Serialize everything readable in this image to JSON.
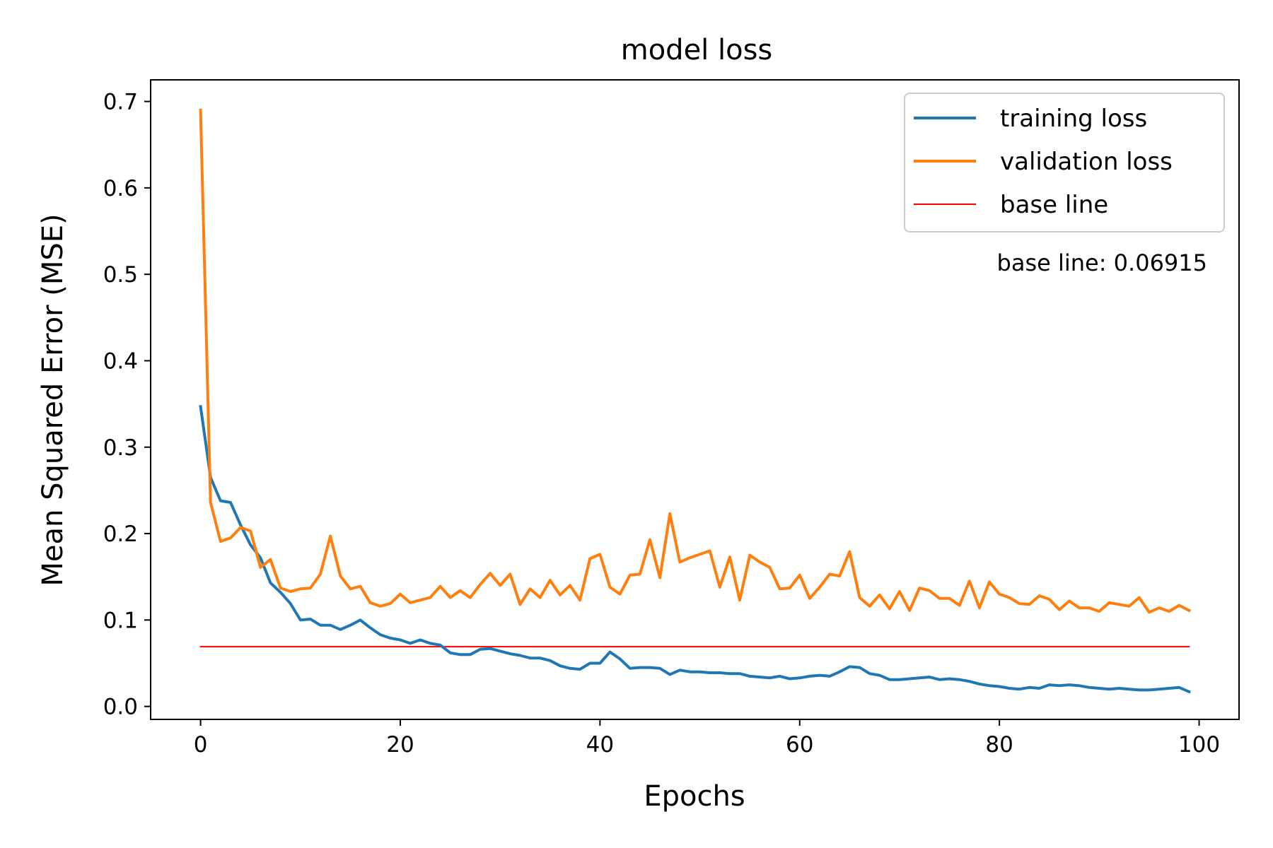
{
  "chart_data": {
    "type": "line",
    "title": "model loss",
    "xlabel": "Epochs",
    "ylabel": "Mean Squared Error (MSE)",
    "xlim": [
      -5,
      104
    ],
    "ylim": [
      -0.015,
      0.725
    ],
    "xticks": [
      0,
      20,
      40,
      60,
      80,
      100
    ],
    "yticks": [
      0.0,
      0.1,
      0.2,
      0.3,
      0.4,
      0.5,
      0.6,
      0.7
    ],
    "xtick_labels": [
      "0",
      "20",
      "40",
      "60",
      "80",
      "100"
    ],
    "ytick_labels": [
      "0.0",
      "0.1",
      "0.2",
      "0.3",
      "0.4",
      "0.5",
      "0.6",
      "0.7"
    ],
    "grid": false,
    "legend_position": "upper right",
    "annotation": "base line: 0.06915",
    "series": [
      {
        "name": "training loss",
        "color": "#1f77b4",
        "x_start": 0,
        "values": [
          0.347,
          0.265,
          0.238,
          0.236,
          0.21,
          0.187,
          0.172,
          0.143,
          0.132,
          0.119,
          0.1,
          0.101,
          0.094,
          0.094,
          0.089,
          0.094,
          0.1,
          0.091,
          0.083,
          0.079,
          0.077,
          0.073,
          0.077,
          0.073,
          0.071,
          0.062,
          0.06,
          0.06,
          0.066,
          0.067,
          0.064,
          0.061,
          0.059,
          0.056,
          0.056,
          0.053,
          0.047,
          0.044,
          0.043,
          0.05,
          0.05,
          0.063,
          0.055,
          0.044,
          0.045,
          0.045,
          0.044,
          0.037,
          0.042,
          0.04,
          0.04,
          0.039,
          0.039,
          0.038,
          0.038,
          0.035,
          0.034,
          0.033,
          0.035,
          0.032,
          0.033,
          0.035,
          0.036,
          0.035,
          0.04,
          0.046,
          0.045,
          0.038,
          0.036,
          0.031,
          0.031,
          0.032,
          0.033,
          0.034,
          0.031,
          0.032,
          0.031,
          0.029,
          0.026,
          0.024,
          0.023,
          0.021,
          0.02,
          0.022,
          0.021,
          0.025,
          0.024,
          0.025,
          0.024,
          0.022,
          0.021,
          0.02,
          0.021,
          0.02,
          0.019,
          0.019,
          0.02,
          0.021,
          0.022,
          0.017
        ]
      },
      {
        "name": "validation loss",
        "color": "#ff7f0e",
        "x_start": 0,
        "values": [
          0.69,
          0.236,
          0.191,
          0.195,
          0.207,
          0.203,
          0.161,
          0.17,
          0.137,
          0.133,
          0.136,
          0.137,
          0.153,
          0.197,
          0.151,
          0.136,
          0.139,
          0.12,
          0.116,
          0.119,
          0.13,
          0.12,
          0.123,
          0.126,
          0.139,
          0.126,
          0.134,
          0.126,
          0.141,
          0.154,
          0.14,
          0.153,
          0.118,
          0.136,
          0.126,
          0.146,
          0.129,
          0.14,
          0.123,
          0.171,
          0.176,
          0.138,
          0.13,
          0.152,
          0.153,
          0.193,
          0.149,
          0.223,
          0.167,
          0.172,
          0.176,
          0.18,
          0.138,
          0.173,
          0.123,
          0.175,
          0.167,
          0.161,
          0.136,
          0.137,
          0.152,
          0.125,
          0.138,
          0.153,
          0.151,
          0.179,
          0.126,
          0.116,
          0.129,
          0.113,
          0.133,
          0.111,
          0.137,
          0.134,
          0.125,
          0.125,
          0.117,
          0.145,
          0.114,
          0.144,
          0.13,
          0.126,
          0.119,
          0.118,
          0.128,
          0.124,
          0.112,
          0.122,
          0.114,
          0.114,
          0.11,
          0.12,
          0.118,
          0.116,
          0.126,
          0.109,
          0.114,
          0.11,
          0.117,
          0.111
        ]
      },
      {
        "name": "base line",
        "color": "#ff0000",
        "x": [
          0,
          99
        ],
        "values": [
          0.06915,
          0.06915
        ]
      }
    ]
  }
}
